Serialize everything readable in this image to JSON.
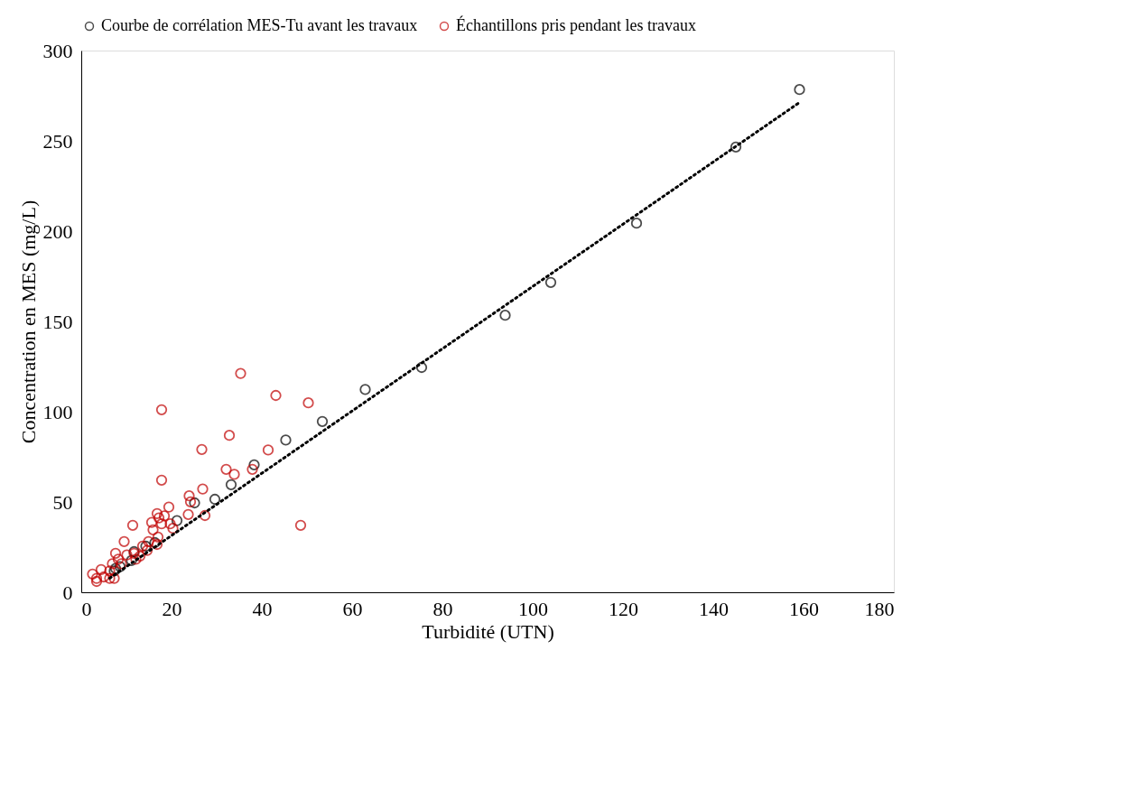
{
  "chart_data": {
    "type": "scatter",
    "xlabel": "Turbidité (UTN)",
    "ylabel": "Concentration en MES (mg/L)",
    "xlim": [
      0,
      180
    ],
    "xticks": [
      0,
      20,
      40,
      60,
      80,
      100,
      120,
      140,
      160,
      180
    ],
    "ylim": [
      0,
      300
    ],
    "yticks": [
      0,
      50,
      100,
      150,
      200,
      250,
      300
    ],
    "grid": false,
    "legend": "top",
    "marker": "circle",
    "series": [
      {
        "name": "Courbe de corrélation MES-Tu avant les travaux",
        "color": "#000000",
        "x": [
          7.3,
          7.6,
          8.6,
          11.1,
          11.7,
          14.3,
          16.3,
          21.2,
          25.1,
          29.6,
          33.2,
          38.3,
          45.3,
          53.4,
          62.9,
          75.4,
          93.9,
          104,
          123,
          145,
          159.1
        ],
        "values": [
          11.8,
          13.2,
          14.2,
          17.6,
          22.5,
          25.5,
          27.5,
          39.7,
          49.5,
          51.5,
          59.6,
          70.6,
          84.3,
          94.6,
          112.3,
          124.5,
          153.4,
          171.6,
          204.4,
          246.6,
          278.4
        ]
      },
      {
        "name": "Échantillons pris pendant les travaux",
        "color": "#c00000",
        "x": [
          35.3,
          43.1,
          50.3,
          32.8,
          26.7,
          41.4,
          32.1,
          33.9,
          37.9,
          26.9,
          23.9,
          24.2,
          19.4,
          27.4,
          23.7,
          48.6,
          17.8,
          17.8,
          11.4,
          16.8,
          17.2,
          18.4,
          15.6,
          17.8,
          20.3,
          19.7,
          15.9,
          17,
          14.9,
          13.6,
          14.6,
          16.8,
          9.5,
          7.6,
          8.2,
          10.1,
          11.7,
          12.1,
          13,
          6.9,
          8.9,
          4.4,
          6.3,
          2.5,
          3.4,
          5,
          6.3,
          7.3,
          3.4
        ],
        "values": [
          121.2,
          109,
          104.9,
          86.9,
          79.1,
          78.8,
          68.1,
          65.3,
          68.1,
          57.2,
          53.4,
          50.1,
          47.2,
          42.5,
          43.1,
          37.1,
          101.1,
          62.1,
          37.1,
          43.6,
          41.2,
          42.3,
          38.7,
          37.9,
          35.4,
          37.9,
          34.6,
          30.6,
          28.1,
          25.6,
          23.2,
          26.5,
          28.1,
          21.6,
          18.3,
          20.7,
          21.6,
          18.3,
          20,
          15.8,
          15.8,
          12.6,
          11.8,
          10.1,
          7.7,
          8.5,
          7.7,
          7.7,
          6
        ]
      },
      {
        "type": "line",
        "color": "#000000",
        "line_style": "dotted",
        "marker": "none",
        "x": [
          6.3,
          159.3
        ],
        "values": [
          7.8,
          271.6
        ]
      }
    ]
  }
}
